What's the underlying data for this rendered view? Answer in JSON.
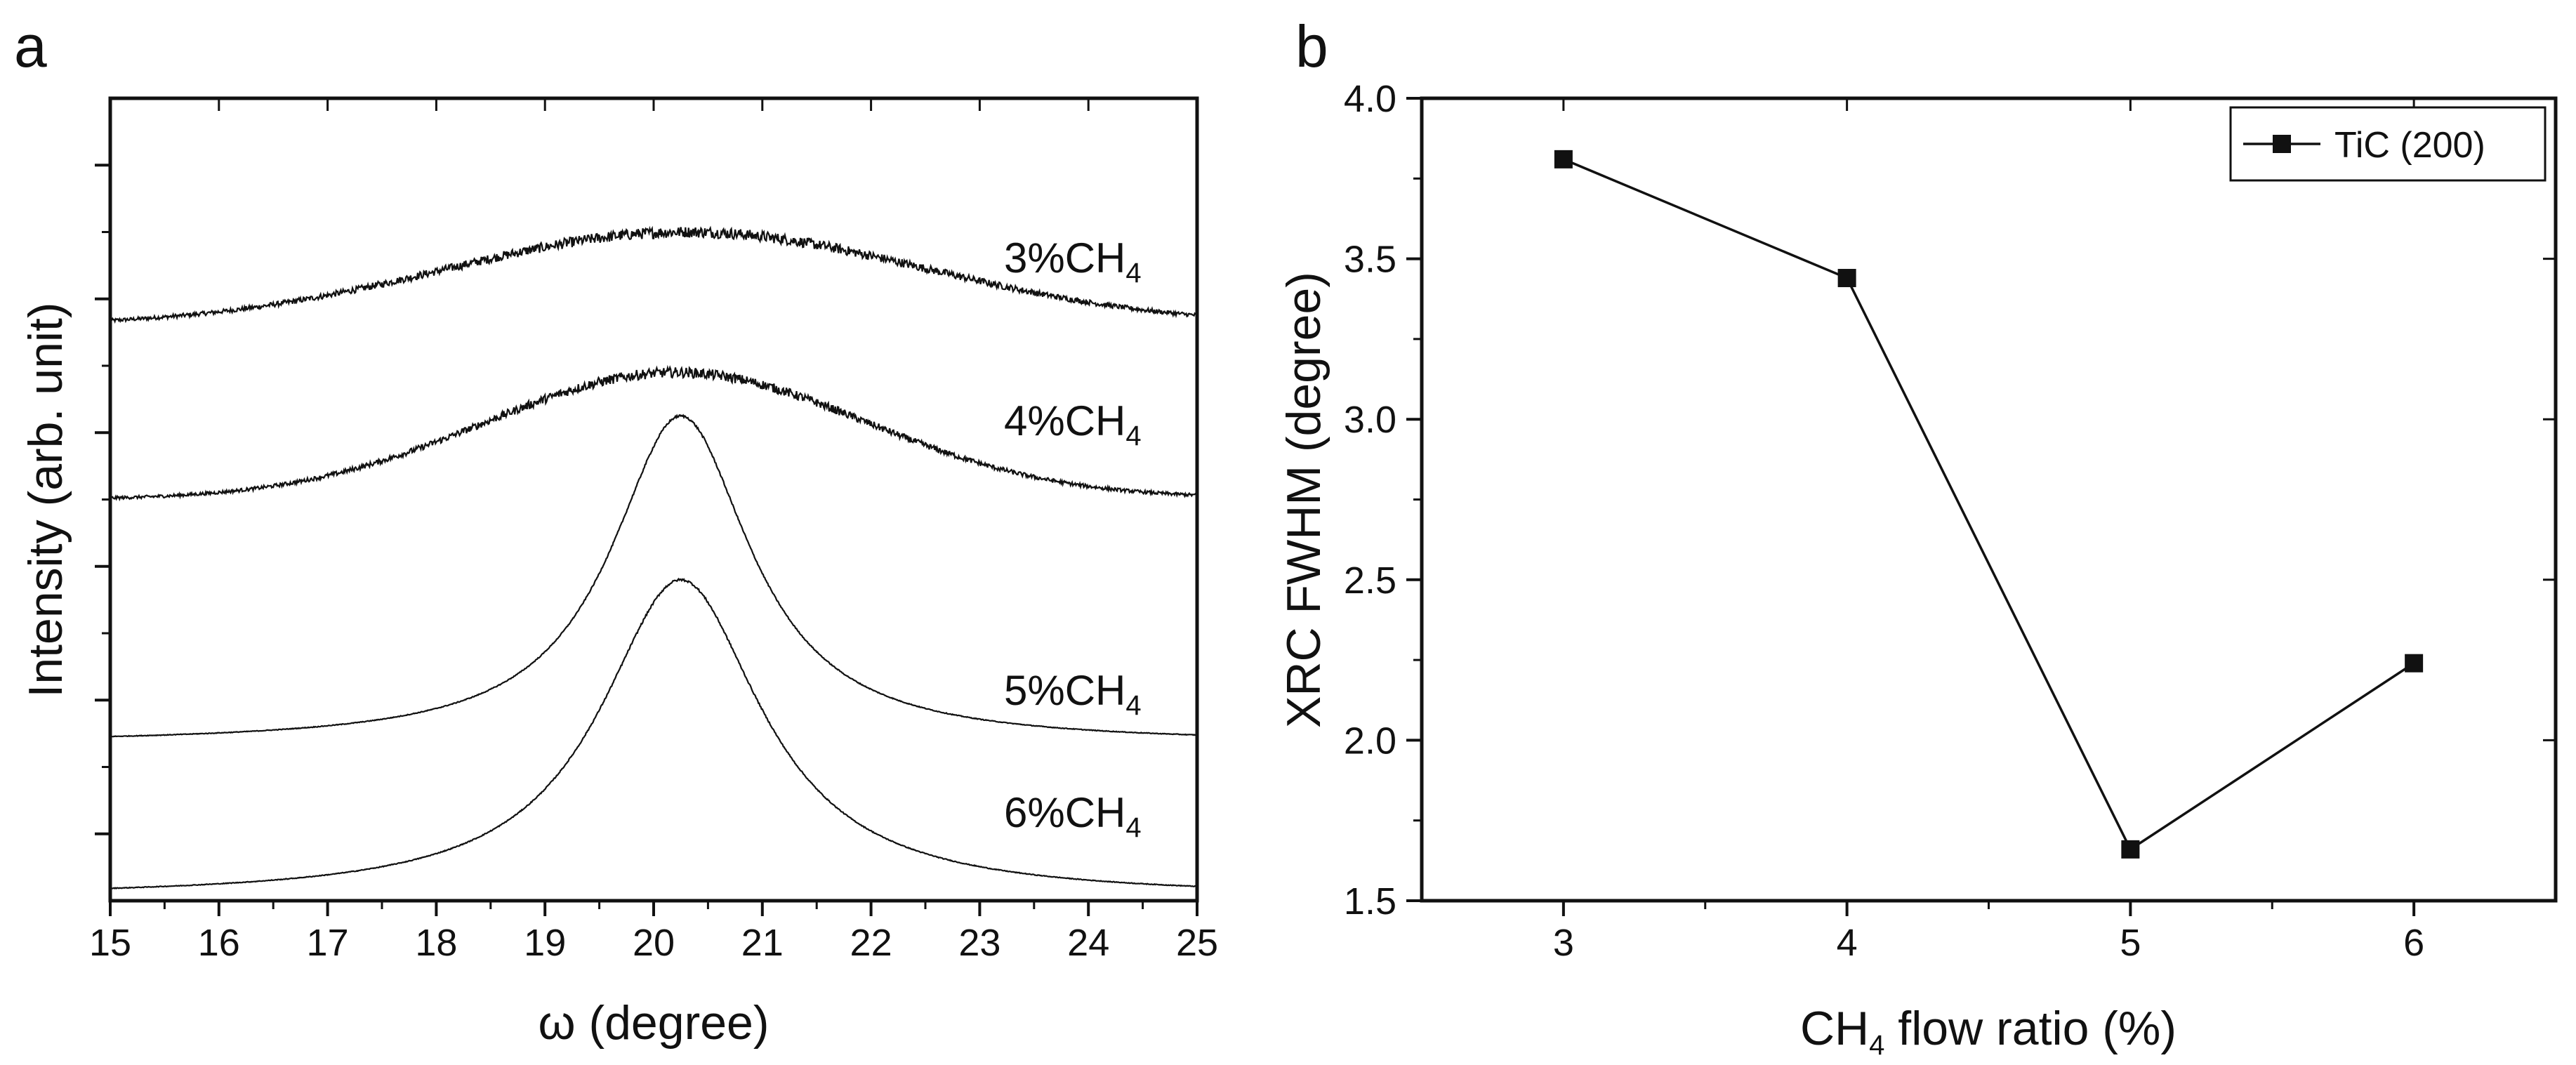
{
  "chart_data": [
    {
      "panel": "a",
      "type": "line",
      "xlabel": "ω (degree)",
      "ylabel": "Intensity (arb. unit)",
      "xlim": [
        15,
        25
      ],
      "ylim": [
        0,
        12
      ],
      "x_ticks": [
        15,
        16,
        17,
        18,
        19,
        20,
        21,
        22,
        23,
        24,
        25
      ],
      "y_tick_labels": false,
      "grid": false,
      "series": [
        {
          "name_main": "3%CH",
          "name_sub": "4",
          "baseline": 8.6,
          "amplitude": 1.4,
          "center": 20.3,
          "width": 2.2,
          "profile": "gaussian",
          "end_value": 8.72,
          "noise": 0.06
        },
        {
          "name_main": "4%CH",
          "name_sub": "4",
          "baseline": 6.0,
          "amplitude": 1.9,
          "center": 20.2,
          "width": 1.75,
          "profile": "gaussian",
          "end_value": 6.22,
          "noise": 0.055
        },
        {
          "name_main": "5%CH",
          "name_sub": "4",
          "baseline": 2.35,
          "amplitude": 4.9,
          "center": 20.25,
          "width": 0.78,
          "profile": "lorentzian",
          "noise": 0.012
        },
        {
          "name_main": "6%CH",
          "name_sub": "4",
          "baseline": 0.05,
          "amplitude": 4.75,
          "center": 20.25,
          "width": 0.9,
          "profile": "lorentzian",
          "noise": 0.012
        }
      ]
    },
    {
      "panel": "b",
      "type": "line",
      "xlabel_main": "CH",
      "xlabel_sub": "4",
      "xlabel_rest": " flow ratio (%)",
      "ylabel": "XRC FWHM (degree)",
      "xlim": [
        2.5,
        6.5
      ],
      "ylim": [
        1.5,
        4.0
      ],
      "x_ticks": [
        3,
        4,
        5,
        6
      ],
      "y_ticks": [
        "1.5",
        "2.0",
        "2.5",
        "3.0",
        "3.5",
        "4.0"
      ],
      "grid": false,
      "legend_position": "top-right",
      "series": [
        {
          "name": "TiC (200)",
          "x": [
            3,
            4,
            5,
            6
          ],
          "values": [
            3.81,
            3.44,
            1.66,
            2.24
          ],
          "marker": "square"
        }
      ]
    }
  ]
}
